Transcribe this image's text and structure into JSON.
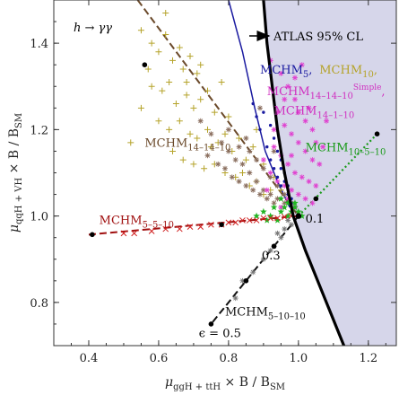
{
  "chart_data": {
    "type": "scatter",
    "title": "h → γγ",
    "xlabel": {
      "base": "μ",
      "sub": "ggH + ttH",
      "rest": " × B / B",
      "sub2": "SM"
    },
    "ylabel": {
      "base": "μ",
      "sub": "qqH + VH",
      "rest": " × B / B",
      "sub2": "SM"
    },
    "xlim": [
      0.3,
      1.28
    ],
    "ylim": [
      0.7,
      1.5
    ],
    "xticks": [
      "0.4",
      "0.6",
      "0.8",
      "1.0",
      "1.2"
    ],
    "yticks": [
      "0.8",
      "1.0",
      "1.2",
      "1.4"
    ],
    "xtick_values": [
      0.4,
      0.6,
      0.8,
      1.0,
      1.2
    ],
    "ytick_values": [
      0.8,
      1.0,
      1.2,
      1.4
    ],
    "atlas_label": "ATLAS 95% CL",
    "atlas_boundary": [
      [
        0.9,
        1.5
      ],
      [
        0.91,
        1.4
      ],
      [
        0.925,
        1.3
      ],
      [
        0.94,
        1.2
      ],
      [
        0.96,
        1.1
      ],
      [
        0.985,
        1.0
      ],
      [
        1.02,
        0.92
      ],
      [
        1.065,
        0.83
      ],
      [
        1.1,
        0.76
      ],
      [
        1.13,
        0.7
      ]
    ],
    "blue_curve": [
      [
        0.8,
        1.5
      ],
      [
        0.84,
        1.38
      ],
      [
        0.875,
        1.25
      ],
      [
        0.905,
        1.15
      ],
      [
        0.94,
        1.08
      ],
      [
        0.975,
        1.02
      ]
    ],
    "model_lines": [
      {
        "name": "MCHM14–14–10",
        "color": "#6b4a2b",
        "style": "dash",
        "from": [
          0.54,
          1.5
        ],
        "to": [
          1.0,
          1.0
        ],
        "points": [
          [
            0.56,
            1.35
          ]
        ]
      },
      {
        "name": "MCHM5–5–10",
        "color": "#a01010",
        "style": "dash",
        "from": [
          0.4,
          0.957
        ],
        "to": [
          1.0,
          1.0
        ],
        "points": [
          [
            0.41,
            0.957
          ],
          [
            0.78,
            0.98
          ]
        ]
      },
      {
        "name": "MCHM10–5–10",
        "color": "#1a9a1a",
        "style": "dot",
        "from": [
          1.0,
          1.0
        ],
        "to": [
          1.225,
          1.19
        ],
        "points": [
          [
            1.05,
            1.04
          ],
          [
            1.225,
            1.19
          ]
        ]
      },
      {
        "name": "MCHM5–10–10",
        "color": "#111111",
        "style": "dash",
        "from": [
          1.0,
          1.0
        ],
        "to": [
          0.75,
          0.75
        ],
        "points": [
          [
            0.85,
            0.85
          ],
          [
            0.93,
            0.93
          ],
          [
            0.75,
            0.75
          ]
        ]
      }
    ],
    "epsilon_labels": [
      {
        "text": "0.1",
        "x": 1.02,
        "y": 0.985
      },
      {
        "text": "0.3",
        "x": 0.895,
        "y": 0.9
      },
      {
        "text": "ϵ = 0.5",
        "x": 0.715,
        "y": 0.72
      }
    ],
    "series": [
      {
        "name": "MCHM10",
        "marker": "plus",
        "color": "#b5a32a",
        "points": [
          [
            0.55,
            1.43
          ],
          [
            0.58,
            1.4
          ],
          [
            0.6,
            1.38
          ],
          [
            0.62,
            1.42
          ],
          [
            0.64,
            1.36
          ],
          [
            0.66,
            1.39
          ],
          [
            0.67,
            1.34
          ],
          [
            0.69,
            1.37
          ],
          [
            0.71,
            1.33
          ],
          [
            0.58,
            1.3
          ],
          [
            0.61,
            1.29
          ],
          [
            0.63,
            1.31
          ],
          [
            0.65,
            1.26
          ],
          [
            0.68,
            1.28
          ],
          [
            0.7,
            1.25
          ],
          [
            0.72,
            1.27
          ],
          [
            0.74,
            1.29
          ],
          [
            0.76,
            1.24
          ],
          [
            0.6,
            1.22
          ],
          [
            0.63,
            1.2
          ],
          [
            0.66,
            1.22
          ],
          [
            0.69,
            1.19
          ],
          [
            0.71,
            1.18
          ],
          [
            0.74,
            1.2
          ],
          [
            0.77,
            1.17
          ],
          [
            0.79,
            1.19
          ],
          [
            0.81,
            1.15
          ],
          [
            0.83,
            1.18
          ],
          [
            0.85,
            1.13
          ],
          [
            0.87,
            1.16
          ],
          [
            0.64,
            1.15
          ],
          [
            0.67,
            1.13
          ],
          [
            0.7,
            1.12
          ],
          [
            0.73,
            1.11
          ],
          [
            0.76,
            1.12
          ],
          [
            0.79,
            1.1
          ],
          [
            0.82,
            1.09
          ],
          [
            0.84,
            1.1
          ],
          [
            0.86,
            1.07
          ],
          [
            0.88,
            1.08
          ],
          [
            0.9,
            1.05
          ],
          [
            0.92,
            1.06
          ],
          [
            0.55,
            1.25
          ],
          [
            0.57,
            1.34
          ],
          [
            0.78,
            1.31
          ],
          [
            0.8,
            1.23
          ],
          [
            0.9,
            1.12
          ],
          [
            0.93,
            1.09
          ],
          [
            0.95,
            1.06
          ],
          [
            0.75,
            1.16
          ],
          [
            0.68,
            1.31
          ],
          [
            0.72,
            1.35
          ],
          [
            0.88,
            1.2
          ],
          [
            0.52,
            1.17
          ],
          [
            0.62,
            1.47
          ]
        ]
      },
      {
        "name": "MCHM14-14-10",
        "marker": "asterisk",
        "color": "#8a6e5e",
        "points": [
          [
            0.72,
            1.22
          ],
          [
            0.75,
            1.19
          ],
          [
            0.78,
            1.17
          ],
          [
            0.8,
            1.15
          ],
          [
            0.82,
            1.13
          ],
          [
            0.84,
            1.12
          ],
          [
            0.86,
            1.1
          ],
          [
            0.88,
            1.08
          ],
          [
            0.9,
            1.06
          ],
          [
            0.92,
            1.05
          ],
          [
            0.94,
            1.04
          ],
          [
            0.96,
            1.03
          ],
          [
            0.74,
            1.14
          ],
          [
            0.77,
            1.12
          ],
          [
            0.79,
            1.11
          ],
          [
            0.81,
            1.09
          ],
          [
            0.83,
            1.08
          ],
          [
            0.85,
            1.07
          ],
          [
            0.87,
            1.06
          ],
          [
            0.89,
            1.05
          ],
          [
            0.91,
            1.04
          ],
          [
            0.93,
            1.03
          ],
          [
            0.95,
            1.02
          ],
          [
            0.83,
            1.16
          ],
          [
            0.86,
            1.15
          ],
          [
            0.88,
            1.13
          ],
          [
            0.9,
            1.11
          ],
          [
            0.92,
            1.09
          ],
          [
            0.94,
            1.07
          ],
          [
            0.96,
            1.05
          ],
          [
            0.98,
            1.03
          ],
          [
            0.8,
            1.2
          ],
          [
            0.85,
            1.18
          ],
          [
            0.93,
            1.15
          ],
          [
            0.89,
            1.25
          ]
        ]
      },
      {
        "name": "MCHM14-1-10",
        "marker": "asterisk",
        "color": "#e040d0",
        "points": [
          [
            0.92,
            1.36
          ],
          [
            0.95,
            1.33
          ],
          [
            0.97,
            1.3
          ],
          [
            0.99,
            1.27
          ],
          [
            1.0,
            1.24
          ],
          [
            1.02,
            1.22
          ],
          [
            1.04,
            1.2
          ],
          [
            0.94,
            1.24
          ],
          [
            0.96,
            1.21
          ],
          [
            0.98,
            1.19
          ],
          [
            1.0,
            1.17
          ],
          [
            1.02,
            1.15
          ],
          [
            1.04,
            1.13
          ],
          [
            1.06,
            1.12
          ],
          [
            0.93,
            1.16
          ],
          [
            0.95,
            1.14
          ],
          [
            0.97,
            1.12
          ],
          [
            0.99,
            1.1
          ],
          [
            1.01,
            1.09
          ],
          [
            1.03,
            1.08
          ],
          [
            1.05,
            1.07
          ],
          [
            0.92,
            1.1
          ],
          [
            0.94,
            1.08
          ],
          [
            0.96,
            1.07
          ],
          [
            0.98,
            1.06
          ],
          [
            1.0,
            1.05
          ],
          [
            1.02,
            1.04
          ],
          [
            1.04,
            1.03
          ],
          [
            0.9,
            1.13
          ],
          [
            0.93,
            1.2
          ],
          [
            0.96,
            1.27
          ],
          [
            0.99,
            1.32
          ],
          [
            1.01,
            1.35
          ],
          [
            1.03,
            1.25
          ],
          [
            1.05,
            1.17
          ],
          [
            0.91,
            1.06
          ],
          [
            0.97,
            1.04
          ],
          [
            0.99,
            1.02
          ],
          [
            0.95,
            1.02
          ],
          [
            1.07,
            1.16
          ],
          [
            1.08,
            1.22
          ],
          [
            0.98,
            1.14
          ]
        ]
      },
      {
        "name": "MCHM5",
        "marker": "dot",
        "color": "#1a1aa0",
        "points": [
          [
            0.9,
            1.24
          ],
          [
            0.92,
            1.21
          ],
          [
            0.93,
            1.18
          ],
          [
            0.94,
            1.15
          ],
          [
            0.95,
            1.13
          ],
          [
            0.95,
            1.11
          ],
          [
            0.96,
            1.1
          ],
          [
            0.96,
            1.08
          ],
          [
            0.97,
            1.07
          ],
          [
            0.97,
            1.05
          ],
          [
            0.98,
            1.04
          ],
          [
            0.98,
            1.03
          ],
          [
            0.99,
            1.02
          ],
          [
            0.91,
            1.16
          ],
          [
            0.92,
            1.13
          ],
          [
            0.93,
            1.11
          ],
          [
            0.94,
            1.09
          ],
          [
            0.95,
            1.07
          ],
          [
            0.89,
            1.2
          ],
          [
            0.88,
            1.23
          ],
          [
            0.87,
            1.26
          ]
        ]
      },
      {
        "name": "MCHM10-5-10",
        "marker": "star",
        "color": "#22b422",
        "points": [
          [
            0.88,
            1.0
          ],
          [
            0.9,
            1.01
          ],
          [
            0.92,
            1.0
          ],
          [
            0.93,
            1.02
          ],
          [
            0.94,
            0.99
          ],
          [
            0.95,
            1.01
          ],
          [
            0.96,
            1.02
          ],
          [
            0.97,
            1.0
          ],
          [
            0.98,
            1.01
          ],
          [
            0.99,
            1.02
          ],
          [
            1.0,
            1.01
          ],
          [
            1.01,
            1.0
          ],
          [
            0.95,
            1.04
          ],
          [
            0.97,
            1.03
          ],
          [
            0.99,
            1.03
          ],
          [
            0.91,
            0.99
          ]
        ]
      },
      {
        "name": "MCHM5-5-10",
        "marker": "cross",
        "color": "#d02020",
        "points": [
          [
            0.5,
            0.96
          ],
          [
            0.53,
            0.96
          ],
          [
            0.58,
            0.965
          ],
          [
            0.62,
            0.97
          ],
          [
            0.66,
            0.97
          ],
          [
            0.69,
            0.975
          ],
          [
            0.72,
            0.975
          ],
          [
            0.75,
            0.98
          ],
          [
            0.78,
            0.98
          ],
          [
            0.8,
            0.985
          ],
          [
            0.82,
            0.985
          ],
          [
            0.84,
            0.99
          ],
          [
            0.86,
            0.99
          ],
          [
            0.88,
            0.99
          ],
          [
            0.9,
            0.995
          ],
          [
            0.92,
            0.995
          ],
          [
            0.94,
            0.995
          ],
          [
            0.96,
            0.998
          ],
          [
            0.98,
            1.0
          ]
        ]
      },
      {
        "name": "MCHM5-10-10",
        "marker": "asterisk",
        "color": "#777777",
        "points": [
          [
            0.96,
            0.97
          ],
          [
            0.97,
            0.99
          ],
          [
            0.98,
            0.98
          ],
          [
            0.95,
            0.95
          ],
          [
            0.94,
            0.96
          ],
          [
            0.93,
            0.93
          ],
          [
            0.92,
            0.92
          ],
          [
            0.9,
            0.9
          ],
          [
            0.87,
            0.87
          ],
          [
            0.84,
            0.85
          ],
          [
            0.82,
            0.81
          ]
        ]
      }
    ],
    "labels": [
      {
        "parts": [
          {
            "t": "MCHM"
          },
          {
            "t": "5",
            "sub": true
          },
          {
            "t": ", "
          }
        ],
        "color": "#1a1aa0",
        "x": 0.89,
        "y": 1.33
      },
      {
        "parts": [
          {
            "t": "MCHM"
          },
          {
            "t": "10",
            "sub": true
          },
          {
            "t": ","
          }
        ],
        "color": "#b5a32a",
        "x": 1.06,
        "y": 1.33
      },
      {
        "parts": [
          {
            "t": "MCHM"
          },
          {
            "t": "14–14–10",
            "sub": true
          },
          {
            "t": "Simple",
            "sup": true
          },
          {
            "t": ","
          }
        ],
        "color": "#d030c0",
        "x": 0.91,
        "y": 1.28
      },
      {
        "parts": [
          {
            "t": "MCHM"
          },
          {
            "t": "14–1–10",
            "sub": true
          }
        ],
        "color": "#d030c0",
        "x": 0.93,
        "y": 1.235
      },
      {
        "parts": [
          {
            "t": "MCHM"
          },
          {
            "t": "14–14–10",
            "sub": true
          }
        ],
        "color": "#6b4a2b",
        "x": 0.56,
        "y": 1.16
      },
      {
        "parts": [
          {
            "t": "MCHM"
          },
          {
            "t": "10–5–10",
            "sub": true
          }
        ],
        "color": "#1a9a1a",
        "x": 1.02,
        "y": 1.15
      },
      {
        "parts": [
          {
            "t": "MCHM"
          },
          {
            "t": "5–5–10",
            "sub": true
          }
        ],
        "color": "#a01010",
        "x": 0.43,
        "y": 0.982
      },
      {
        "parts": [
          {
            "t": "MCHM"
          },
          {
            "t": "5–10–10",
            "sub": true
          }
        ],
        "color": "#111111",
        "x": 0.79,
        "y": 0.77
      }
    ],
    "colors": {
      "excluded_region": "#d6d6ea",
      "atlas_boundary": "#000000"
    }
  }
}
